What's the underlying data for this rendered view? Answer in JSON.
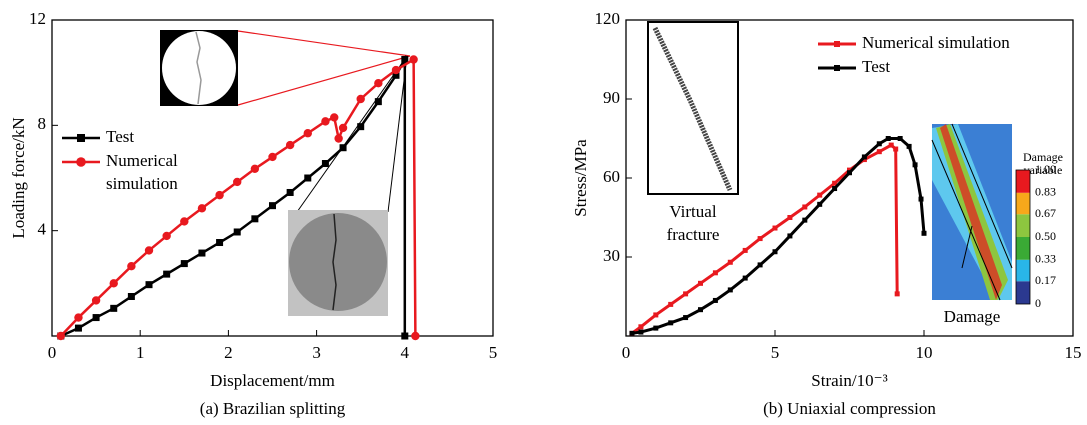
{
  "chart_data": [
    {
      "type": "line",
      "title": "(a) Brazilian splitting",
      "xlabel": "Displacement/mm",
      "ylabel": "Loading force/kN",
      "xlim": [
        0,
        5
      ],
      "ylim": [
        0,
        12
      ],
      "xticks": [
        0,
        1,
        2,
        3,
        4,
        5
      ],
      "yticks": [
        4,
        8,
        12
      ],
      "legend": "center left",
      "series": [
        {
          "name": "Test",
          "color": "#000000",
          "marker": "square",
          "x": [
            0.1,
            0.3,
            0.5,
            0.7,
            0.9,
            1.1,
            1.3,
            1.5,
            1.7,
            1.9,
            2.1,
            2.3,
            2.5,
            2.7,
            2.9,
            3.1,
            3.3,
            3.5,
            3.7,
            3.9,
            4.0,
            4.0
          ],
          "values": [
            0,
            0.3,
            0.7,
            1.05,
            1.5,
            1.95,
            2.35,
            2.75,
            3.15,
            3.55,
            3.95,
            4.45,
            4.95,
            5.45,
            6.0,
            6.55,
            7.15,
            7.95,
            8.9,
            9.9,
            10.5,
            0
          ]
        },
        {
          "name": "Numerical simulation",
          "color": "#e8191f",
          "marker": "circle",
          "x": [
            0.1,
            0.3,
            0.5,
            0.7,
            0.9,
            1.1,
            1.3,
            1.5,
            1.7,
            1.9,
            2.1,
            2.3,
            2.5,
            2.7,
            2.9,
            3.1,
            3.2,
            3.25,
            3.3,
            3.5,
            3.7,
            3.9,
            4.1,
            4.12
          ],
          "values": [
            0,
            0.7,
            1.35,
            2.0,
            2.65,
            3.25,
            3.8,
            4.35,
            4.85,
            5.35,
            5.85,
            6.35,
            6.8,
            7.25,
            7.7,
            8.15,
            8.3,
            7.5,
            7.9,
            9.0,
            9.6,
            10.1,
            10.5,
            0
          ]
        }
      ]
    },
    {
      "type": "line",
      "title": "(b) Uniaxial compression",
      "xlabel": "Strain/10⁻³",
      "ylabel": "Stress/MPa",
      "xlim": [
        0,
        15
      ],
      "ylim": [
        0,
        120
      ],
      "xticks": [
        0,
        5,
        10,
        15
      ],
      "yticks": [
        30,
        60,
        90,
        120
      ],
      "legend": "upper right",
      "series": [
        {
          "name": "Numerical simulation",
          "color": "#e8191f",
          "marker": "square",
          "x": [
            0.2,
            0.5,
            1,
            1.5,
            2,
            2.5,
            3,
            3.5,
            4,
            4.5,
            5,
            5.5,
            6,
            6.5,
            7,
            7.5,
            8,
            8.5,
            8.9,
            9.05,
            9.1
          ],
          "values": [
            1,
            3.5,
            8,
            12,
            16,
            20,
            24,
            28,
            32.5,
            37,
            41,
            45,
            49,
            53.5,
            58,
            63,
            67,
            70,
            72.5,
            71,
            16
          ]
        },
        {
          "name": "Test",
          "color": "#000000",
          "marker": "square",
          "x": [
            0.2,
            0.5,
            1,
            1.5,
            2,
            2.5,
            3,
            3.5,
            4,
            4.5,
            5,
            5.5,
            6,
            6.5,
            7,
            7.5,
            8,
            8.5,
            8.8,
            9.2,
            9.5,
            9.7,
            9.9,
            10
          ],
          "values": [
            1,
            1.5,
            3,
            5,
            7,
            10,
            13.5,
            17.5,
            22,
            27,
            32,
            38,
            44,
            50,
            56,
            62,
            68,
            73,
            75,
            75,
            72,
            65,
            52,
            39
          ]
        }
      ],
      "annotations": [
        "Virtual fracture",
        "Damage"
      ],
      "colorbar": {
        "title": "Damage variable",
        "colors": [
          "#2b3990",
          "#29b6e8",
          "#3aaa35",
          "#8dc63f",
          "#f7a81b",
          "#e8191f"
        ],
        "ticks": [
          0,
          {
            "value": 0.17,
            "label": "0.17"
          },
          {
            "value": 0.33,
            "label": "0.33"
          },
          {
            "value": 0.5,
            "label": "0.50"
          },
          {
            "value": 0.67,
            "label": "0.67"
          },
          {
            "value": 0.83,
            "label": "0.83"
          },
          {
            "value": 1,
            "label": "1.00"
          }
        ]
      }
    }
  ]
}
